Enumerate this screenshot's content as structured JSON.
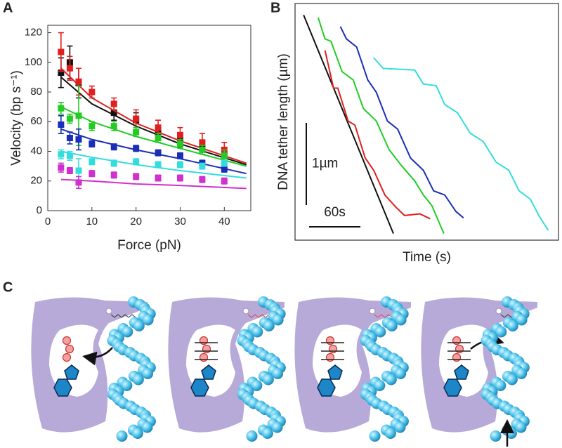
{
  "chart_data": [
    {
      "type": "scatter",
      "panel_label": "A",
      "xlabel": "Force (pN)",
      "ylabel": "Velocity (bp s⁻¹)",
      "xlim": [
        0,
        46
      ],
      "ylim": [
        0,
        125
      ],
      "xticks": [
        0,
        10,
        20,
        30,
        40
      ],
      "yticks": [
        0,
        20,
        40,
        60,
        80,
        100,
        120
      ],
      "fit_x": [
        3,
        10,
        20,
        30,
        45
      ],
      "series": [
        {
          "color": "#111111",
          "x": [
            3,
            5,
            7,
            15,
            20,
            25,
            30,
            35,
            40
          ],
          "values": [
            93,
            100,
            86,
            66,
            61,
            53,
            47,
            42,
            37
          ],
          "errors": [
            10,
            11,
            10,
            5,
            5,
            4,
            4,
            4,
            4
          ],
          "fit": [
            90,
            72,
            57,
            45,
            31
          ]
        },
        {
          "color": "#e02020",
          "x": [
            3,
            5,
            7,
            10,
            15,
            20,
            25,
            30,
            35,
            40
          ],
          "values": [
            107,
            96,
            87,
            80,
            72,
            62,
            56,
            51,
            46,
            41
          ],
          "errors": [
            13,
            8,
            9,
            4,
            4,
            6,
            5,
            5,
            6,
            5
          ],
          "fit": [
            96,
            76,
            59,
            47,
            32
          ]
        },
        {
          "color": "#22cc22",
          "x": [
            3,
            5,
            7,
            10,
            15,
            20,
            25,
            30,
            35,
            40
          ],
          "values": [
            69,
            62,
            64,
            57,
            57,
            53,
            49,
            45,
            41,
            37
          ],
          "errors": [
            4,
            3,
            20,
            3,
            3,
            3,
            3,
            3,
            3,
            4
          ],
          "fit": [
            70,
            60,
            50,
            42,
            30
          ]
        },
        {
          "color": "#1a2fb8",
          "x": [
            3,
            5,
            7,
            10,
            15,
            20,
            25,
            30,
            35,
            40
          ],
          "values": [
            58,
            49,
            48,
            45,
            43,
            42,
            39,
            37,
            32,
            28
          ],
          "errors": [
            6,
            4,
            7,
            2,
            2,
            2,
            2,
            2,
            2,
            2
          ],
          "fit": [
            55,
            48,
            41,
            35,
            25
          ]
        },
        {
          "color": "#33dddd",
          "x": [
            3,
            5,
            7,
            10,
            15,
            20,
            25,
            30,
            35,
            40
          ],
          "values": [
            38,
            37,
            27,
            33,
            32,
            33,
            31,
            31,
            30,
            32
          ],
          "errors": [
            3,
            3,
            8,
            2,
            2,
            2,
            2,
            2,
            2,
            2
          ],
          "fit": [
            40,
            36,
            31,
            27,
            22
          ]
        },
        {
          "color": "#d030d0",
          "x": [
            3,
            5,
            7,
            10,
            15,
            20,
            25,
            30,
            35,
            40
          ],
          "values": [
            29,
            27,
            19,
            25,
            24,
            23,
            22,
            22,
            21,
            20
          ],
          "errors": [
            3,
            2,
            4,
            2,
            2,
            2,
            2,
            2,
            2,
            2
          ],
          "fit": [
            21,
            20,
            18,
            17,
            15
          ]
        }
      ]
    },
    {
      "type": "line",
      "panel_label": "B",
      "xlabel": "Time (s)",
      "ylabel": "DNA tether length (µm)",
      "xlim": [
        0,
        308
      ],
      "ylim": [
        0,
        2.88
      ],
      "scale_bars": [
        {
          "label": "1µm",
          "value": 1,
          "axis": "y"
        },
        {
          "label": "60s",
          "value": 60,
          "axis": "x"
        }
      ],
      "series": [
        {
          "color": "#111111",
          "x": [
            10,
            115
          ],
          "values": [
            2.74,
            0.08
          ]
        },
        {
          "color": "#e02020",
          "x": [
            35,
            45,
            50,
            62,
            70,
            82,
            92,
            105,
            118,
            128,
            146,
            158
          ],
          "values": [
            2.31,
            1.85,
            1.85,
            1.45,
            1.4,
            1.0,
            0.85,
            0.55,
            0.4,
            0.3,
            0.32,
            0.26
          ]
        },
        {
          "color": "#22cc22",
          "x": [
            27,
            35,
            42,
            55,
            68,
            80,
            95,
            110,
            125,
            140,
            150,
            160,
            174
          ],
          "values": [
            2.71,
            2.45,
            2.42,
            2.05,
            1.95,
            1.6,
            1.45,
            1.1,
            0.9,
            0.72,
            0.55,
            0.42,
            0.08
          ]
        },
        {
          "color": "#1a2fb8",
          "x": [
            53,
            60,
            72,
            85,
            95,
            108,
            120,
            135,
            150,
            162,
            175,
            188,
            197
          ],
          "values": [
            2.6,
            2.45,
            2.35,
            1.95,
            1.8,
            1.45,
            1.35,
            1.0,
            0.85,
            0.6,
            0.55,
            0.35,
            0.27
          ]
        },
        {
          "color": "#33dddd",
          "x": [
            92,
            103,
            140,
            150,
            165,
            175,
            190,
            205,
            220,
            235,
            250,
            262,
            275,
            285,
            296
          ],
          "values": [
            2.22,
            2.09,
            2.07,
            1.9,
            1.88,
            1.65,
            1.55,
            1.3,
            1.2,
            0.95,
            0.85,
            0.6,
            0.5,
            0.3,
            0.12
          ]
        }
      ]
    }
  ],
  "panel_c": {
    "label": "C"
  }
}
